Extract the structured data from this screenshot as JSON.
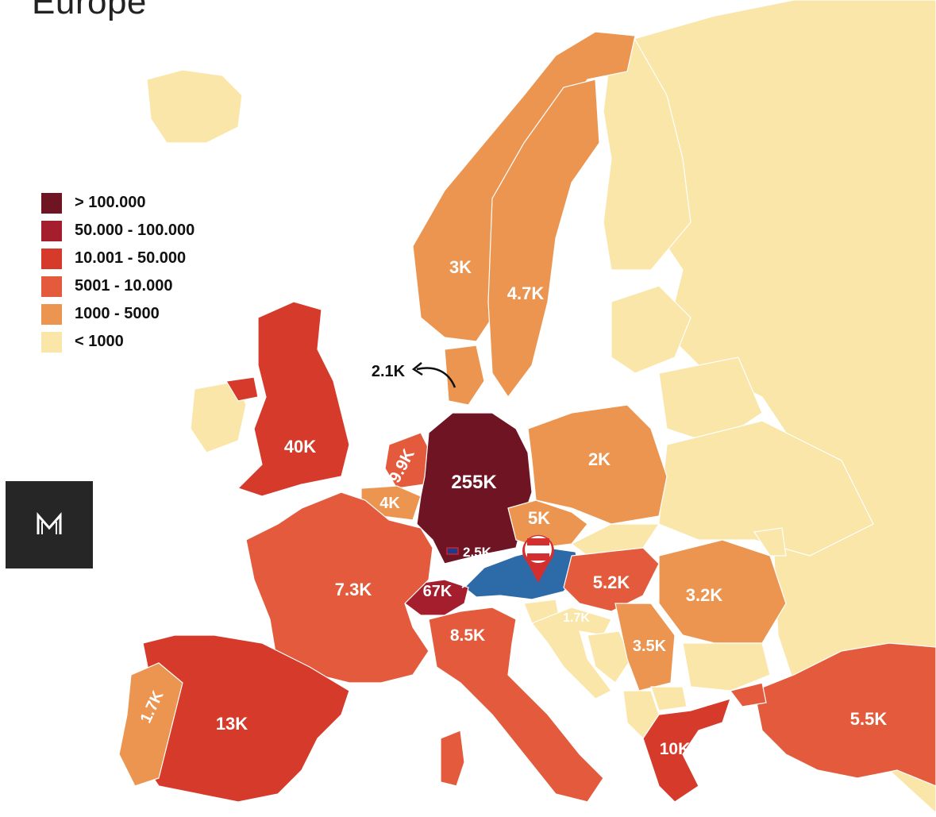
{
  "title": "Europe",
  "legend": [
    {
      "label": "> 100.000",
      "color": "#6e1423"
    },
    {
      "label": "50.000 - 100.000",
      "color": "#a51e2d"
    },
    {
      "label": "10.001 - 50.000",
      "color": "#d63a2b"
    },
    {
      "label": "5001 - 10.000",
      "color": "#e35b3c"
    },
    {
      "label": "1000 - 5000",
      "color": "#eb9550"
    },
    {
      "label": "< 1000",
      "color": "#f9e6a8"
    }
  ],
  "colors": {
    "sea": "#ffffff",
    "border": "#b9ad8c",
    "highlight_country": "#2d6aa8",
    "pin": "#d32f2f",
    "logo_bg": "#262626"
  },
  "region_values": {
    "germany": "255K",
    "united_kingdom": "40K",
    "switzerland": "67K",
    "spain": "13K",
    "greece": "10K",
    "netherlands": "9.9K",
    "italy": "8.5K",
    "france": "7.3K",
    "turkey": "5.5K",
    "hungary": "5.2K",
    "czechia": "5K",
    "sweden": "4.7K",
    "belgium": "4K",
    "serbia": "3.5K",
    "romania": "3.2K",
    "norway": "3K",
    "liechtenstein": "2.5K",
    "denmark": "2.1K",
    "poland": "2K",
    "portugal": "1.7K",
    "croatia": "1.7K"
  },
  "logo_icon": "m-monogram-icon",
  "pin_icon": "austria-flag-pin-icon"
}
